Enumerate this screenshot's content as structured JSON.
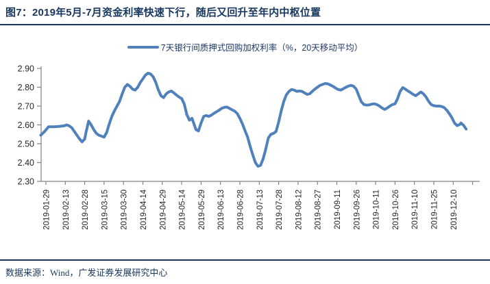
{
  "header": {
    "title": "图7：2019年5月-7月资金利率快速下行，随后又回升至年内中枢位置"
  },
  "footer": {
    "source": "数据来源：Wind，广发证券发展研究中心"
  },
  "colors": {
    "title_navy": "#17375E",
    "rule_navy": "#17375E",
    "line_blue": "#4F81BD",
    "axis_gray": "#808080",
    "tick_text": "#262626"
  },
  "chart_data": {
    "type": "line",
    "title": "",
    "legend": [
      "7天银行间质押式回购加权利率（%，20天移动平均）"
    ],
    "legend_position": "top-center",
    "grid": false,
    "ylim": [
      2.3,
      2.9
    ],
    "yticks": [
      2.9,
      2.8,
      2.7,
      2.6,
      2.5,
      2.4,
      2.3
    ],
    "x_tick_interval_days": 15,
    "x_tick_labels": [
      "2019-01-29",
      "2019-02-13",
      "2019-02-28",
      "2019-03-15",
      "2019-03-30",
      "2019-04-14",
      "2019-04-29",
      "2019-05-14",
      "2019-05-29",
      "2019-06-13",
      "2019-06-28",
      "2019-07-13",
      "2019-07-28",
      "2019-08-12",
      "2019-08-27",
      "2019-09-11",
      "2019-09-26",
      "2019-10-11",
      "2019-10-26",
      "2019-11-10",
      "2019-11-25",
      "2019-12-10"
    ],
    "series": [
      {
        "name": "7天银行间质押式回购加权利率（%，20天移动平均）",
        "points": [
          [
            "2019-01-25",
            2.545
          ],
          [
            "2019-01-28",
            2.565
          ],
          [
            "2019-01-31",
            2.59
          ],
          [
            "2019-02-04",
            2.59
          ],
          [
            "2019-02-08",
            2.592
          ],
          [
            "2019-02-12",
            2.595
          ],
          [
            "2019-02-14",
            2.6
          ],
          [
            "2019-02-16",
            2.595
          ],
          [
            "2019-02-18",
            2.585
          ],
          [
            "2019-02-20",
            2.565
          ],
          [
            "2019-02-22",
            2.545
          ],
          [
            "2019-02-24",
            2.525
          ],
          [
            "2019-02-26",
            2.51
          ],
          [
            "2019-02-28",
            2.525
          ],
          [
            "2019-03-01",
            2.56
          ],
          [
            "2019-03-03",
            2.62
          ],
          [
            "2019-03-05",
            2.6
          ],
          [
            "2019-03-07",
            2.575
          ],
          [
            "2019-03-09",
            2.555
          ],
          [
            "2019-03-11",
            2.545
          ],
          [
            "2019-03-13",
            2.54
          ],
          [
            "2019-03-15",
            2.535
          ],
          [
            "2019-03-17",
            2.56
          ],
          [
            "2019-03-19",
            2.605
          ],
          [
            "2019-03-21",
            2.645
          ],
          [
            "2019-03-23",
            2.675
          ],
          [
            "2019-03-25",
            2.7
          ],
          [
            "2019-03-27",
            2.725
          ],
          [
            "2019-03-29",
            2.765
          ],
          [
            "2019-03-31",
            2.8
          ],
          [
            "2019-04-02",
            2.815
          ],
          [
            "2019-04-04",
            2.805
          ],
          [
            "2019-04-06",
            2.79
          ],
          [
            "2019-04-08",
            2.785
          ],
          [
            "2019-04-10",
            2.8
          ],
          [
            "2019-04-12",
            2.825
          ],
          [
            "2019-04-14",
            2.845
          ],
          [
            "2019-04-16",
            2.865
          ],
          [
            "2019-04-18",
            2.875
          ],
          [
            "2019-04-20",
            2.87
          ],
          [
            "2019-04-22",
            2.855
          ],
          [
            "2019-04-24",
            2.825
          ],
          [
            "2019-04-26",
            2.785
          ],
          [
            "2019-04-28",
            2.755
          ],
          [
            "2019-04-30",
            2.745
          ],
          [
            "2019-05-02",
            2.765
          ],
          [
            "2019-05-04",
            2.775
          ],
          [
            "2019-05-06",
            2.78
          ],
          [
            "2019-05-08",
            2.77
          ],
          [
            "2019-05-10",
            2.758
          ],
          [
            "2019-05-12",
            2.748
          ],
          [
            "2019-05-14",
            2.74
          ],
          [
            "2019-05-16",
            2.71
          ],
          [
            "2019-05-18",
            2.655
          ],
          [
            "2019-05-20",
            2.625
          ],
          [
            "2019-05-22",
            2.635
          ],
          [
            "2019-05-23",
            2.615
          ],
          [
            "2019-05-25",
            2.575
          ],
          [
            "2019-05-27",
            2.568
          ],
          [
            "2019-05-29",
            2.61
          ],
          [
            "2019-05-31",
            2.645
          ],
          [
            "2019-06-02",
            2.65
          ],
          [
            "2019-06-04",
            2.645
          ],
          [
            "2019-06-06",
            2.652
          ],
          [
            "2019-06-08",
            2.662
          ],
          [
            "2019-06-10",
            2.67
          ],
          [
            "2019-06-12",
            2.678
          ],
          [
            "2019-06-14",
            2.688
          ],
          [
            "2019-06-16",
            2.693
          ],
          [
            "2019-06-18",
            2.695
          ],
          [
            "2019-06-20",
            2.688
          ],
          [
            "2019-06-22",
            2.68
          ],
          [
            "2019-06-24",
            2.673
          ],
          [
            "2019-06-26",
            2.66
          ],
          [
            "2019-06-28",
            2.635
          ],
          [
            "2019-06-30",
            2.605
          ],
          [
            "2019-07-02",
            2.57
          ],
          [
            "2019-07-04",
            2.535
          ],
          [
            "2019-07-06",
            2.485
          ],
          [
            "2019-07-08",
            2.44
          ],
          [
            "2019-07-10",
            2.4
          ],
          [
            "2019-07-12",
            2.38
          ],
          [
            "2019-07-14",
            2.385
          ],
          [
            "2019-07-16",
            2.42
          ],
          [
            "2019-07-18",
            2.47
          ],
          [
            "2019-07-20",
            2.53
          ],
          [
            "2019-07-22",
            2.55
          ],
          [
            "2019-07-24",
            2.555
          ],
          [
            "2019-07-26",
            2.565
          ],
          [
            "2019-07-28",
            2.615
          ],
          [
            "2019-07-30",
            2.675
          ],
          [
            "2019-08-01",
            2.725
          ],
          [
            "2019-08-03",
            2.76
          ],
          [
            "2019-08-05",
            2.778
          ],
          [
            "2019-08-07",
            2.788
          ],
          [
            "2019-08-09",
            2.785
          ],
          [
            "2019-08-11",
            2.778
          ],
          [
            "2019-08-13",
            2.78
          ],
          [
            "2019-08-15",
            2.778
          ],
          [
            "2019-08-17",
            2.77
          ],
          [
            "2019-08-19",
            2.762
          ],
          [
            "2019-08-21",
            2.765
          ],
          [
            "2019-08-23",
            2.778
          ],
          [
            "2019-08-25",
            2.79
          ],
          [
            "2019-08-27",
            2.8
          ],
          [
            "2019-08-29",
            2.81
          ],
          [
            "2019-08-31",
            2.815
          ],
          [
            "2019-09-02",
            2.82
          ],
          [
            "2019-09-04",
            2.818
          ],
          [
            "2019-09-06",
            2.812
          ],
          [
            "2019-09-08",
            2.805
          ],
          [
            "2019-09-10",
            2.796
          ],
          [
            "2019-09-12",
            2.788
          ],
          [
            "2019-09-14",
            2.785
          ],
          [
            "2019-09-16",
            2.792
          ],
          [
            "2019-09-18",
            2.8
          ],
          [
            "2019-09-20",
            2.806
          ],
          [
            "2019-09-22",
            2.81
          ],
          [
            "2019-09-24",
            2.805
          ],
          [
            "2019-09-26",
            2.79
          ],
          [
            "2019-09-28",
            2.755
          ],
          [
            "2019-09-30",
            2.722
          ],
          [
            "2019-10-02",
            2.708
          ],
          [
            "2019-10-04",
            2.705
          ],
          [
            "2019-10-06",
            2.706
          ],
          [
            "2019-10-08",
            2.71
          ],
          [
            "2019-10-10",
            2.712
          ],
          [
            "2019-10-12",
            2.708
          ],
          [
            "2019-10-14",
            2.7
          ],
          [
            "2019-10-16",
            2.69
          ],
          [
            "2019-10-18",
            2.682
          ],
          [
            "2019-10-20",
            2.69
          ],
          [
            "2019-10-22",
            2.7
          ],
          [
            "2019-10-24",
            2.708
          ],
          [
            "2019-10-26",
            2.712
          ],
          [
            "2019-10-28",
            2.74
          ],
          [
            "2019-10-30",
            2.778
          ],
          [
            "2019-11-01",
            2.798
          ],
          [
            "2019-11-03",
            2.79
          ],
          [
            "2019-11-05",
            2.78
          ],
          [
            "2019-11-07",
            2.772
          ],
          [
            "2019-11-09",
            2.762
          ],
          [
            "2019-11-11",
            2.755
          ],
          [
            "2019-11-13",
            2.765
          ],
          [
            "2019-11-15",
            2.775
          ],
          [
            "2019-11-17",
            2.765
          ],
          [
            "2019-11-19",
            2.748
          ],
          [
            "2019-11-21",
            2.725
          ],
          [
            "2019-11-23",
            2.708
          ],
          [
            "2019-11-25",
            2.702
          ],
          [
            "2019-11-27",
            2.7
          ],
          [
            "2019-11-29",
            2.7
          ],
          [
            "2019-12-01",
            2.698
          ],
          [
            "2019-12-03",
            2.692
          ],
          [
            "2019-12-05",
            2.678
          ],
          [
            "2019-12-07",
            2.66
          ],
          [
            "2019-12-09",
            2.638
          ],
          [
            "2019-12-11",
            2.61
          ],
          [
            "2019-12-13",
            2.596
          ],
          [
            "2019-12-15",
            2.602
          ],
          [
            "2019-12-16",
            2.61
          ],
          [
            "2019-12-18",
            2.598
          ],
          [
            "2019-12-20",
            2.578
          ]
        ]
      }
    ]
  }
}
